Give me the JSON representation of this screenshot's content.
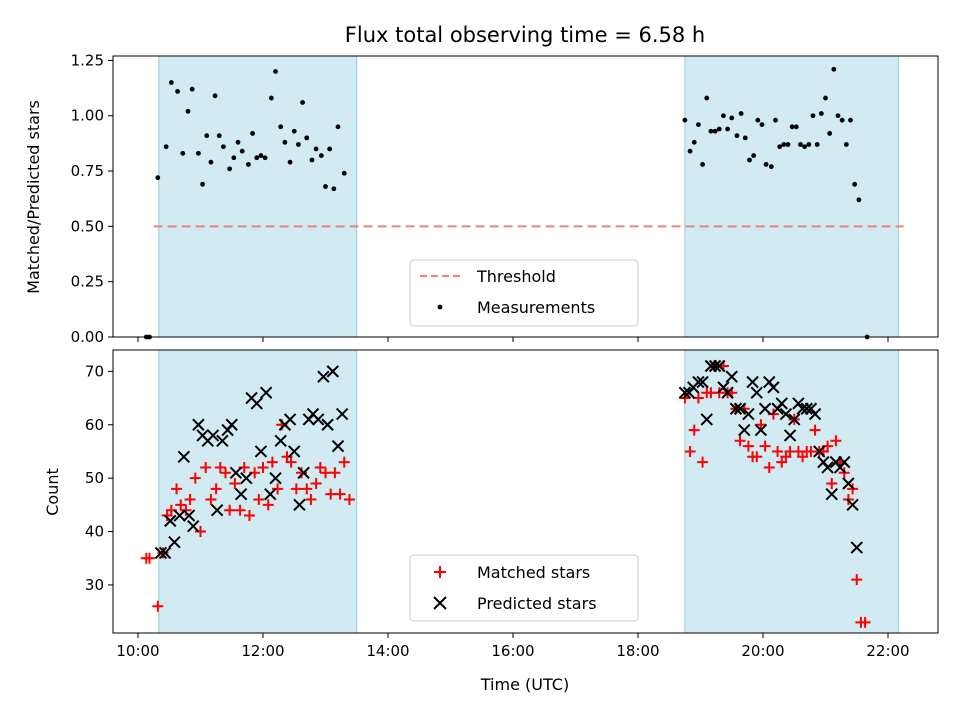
{
  "chart_data": [
    {
      "type": "scatter",
      "title": "Flux total observing time = 6.58 h",
      "xlabel": "",
      "ylabel": "Matched/Predicted stars",
      "xlim": [
        "09:36",
        "22:48"
      ],
      "ylim": [
        0,
        1.27
      ],
      "yticks": [
        "0.00",
        "0.25",
        "0.50",
        "0.75",
        "1.00",
        "1.25"
      ],
      "ytick_values": [
        0,
        0.25,
        0.5,
        0.75,
        1.0,
        1.25
      ],
      "grid": false,
      "legend": "bottom-center",
      "observing_windows": [
        [
          "10:20",
          "13:30"
        ],
        [
          "18:45",
          "22:10"
        ]
      ],
      "window_color": "#add8e6",
      "threshold": {
        "name": "Threshold",
        "value": 0.5,
        "x_range": [
          "10:15",
          "22:15"
        ],
        "color": "#f08080",
        "style": "dashed"
      },
      "series": [
        {
          "name": "Measurements",
          "color": "#000000",
          "marker": "dot",
          "points": [
            [
              "10:08",
              0.0
            ],
            [
              "10:11",
              0.0
            ],
            [
              "10:19",
              0.72
            ],
            [
              "10:27",
              0.86
            ],
            [
              "10:32",
              1.15
            ],
            [
              "10:38",
              1.11
            ],
            [
              "10:43",
              0.83
            ],
            [
              "10:48",
              1.02
            ],
            [
              "10:52",
              1.12
            ],
            [
              "10:58",
              0.83
            ],
            [
              "11:02",
              0.69
            ],
            [
              "11:06",
              0.91
            ],
            [
              "11:10",
              0.79
            ],
            [
              "11:14",
              1.09
            ],
            [
              "11:18",
              0.91
            ],
            [
              "11:22",
              0.86
            ],
            [
              "11:28",
              0.76
            ],
            [
              "11:32",
              0.81
            ],
            [
              "11:36",
              0.88
            ],
            [
              "11:40",
              0.84
            ],
            [
              "11:46",
              0.78
            ],
            [
              "11:50",
              0.92
            ],
            [
              "11:54",
              0.81
            ],
            [
              "11:58",
              0.82
            ],
            [
              "12:02",
              0.81
            ],
            [
              "12:08",
              1.08
            ],
            [
              "12:12",
              1.2
            ],
            [
              "12:17",
              0.95
            ],
            [
              "12:21",
              0.88
            ],
            [
              "12:26",
              0.79
            ],
            [
              "12:30",
              0.93
            ],
            [
              "12:34",
              0.87
            ],
            [
              "12:38",
              1.06
            ],
            [
              "12:42",
              0.9
            ],
            [
              "12:47",
              0.8
            ],
            [
              "12:51",
              0.85
            ],
            [
              "12:56",
              0.82
            ],
            [
              "13:00",
              0.68
            ],
            [
              "13:04",
              0.85
            ],
            [
              "13:08",
              0.67
            ],
            [
              "13:12",
              0.95
            ],
            [
              "13:18",
              0.74
            ],
            [
              "18:45",
              0.98
            ],
            [
              "18:50",
              0.84
            ],
            [
              "18:54",
              0.88
            ],
            [
              "18:58",
              0.96
            ],
            [
              "19:02",
              0.78
            ],
            [
              "19:06",
              1.08
            ],
            [
              "19:10",
              0.93
            ],
            [
              "19:14",
              0.93
            ],
            [
              "19:18",
              0.94
            ],
            [
              "19:22",
              1.0
            ],
            [
              "19:26",
              0.94
            ],
            [
              "19:30",
              0.99
            ],
            [
              "19:35",
              0.91
            ],
            [
              "19:39",
              1.01
            ],
            [
              "19:43",
              0.9
            ],
            [
              "19:47",
              0.8
            ],
            [
              "19:51",
              0.82
            ],
            [
              "19:55",
              0.98
            ],
            [
              "19:59",
              0.96
            ],
            [
              "20:03",
              0.78
            ],
            [
              "20:08",
              0.77
            ],
            [
              "20:12",
              0.98
            ],
            [
              "20:16",
              0.86
            ],
            [
              "20:20",
              0.87
            ],
            [
              "20:24",
              0.87
            ],
            [
              "20:28",
              0.95
            ],
            [
              "20:32",
              0.95
            ],
            [
              "20:36",
              0.87
            ],
            [
              "20:40",
              0.86
            ],
            [
              "20:44",
              0.87
            ],
            [
              "20:48",
              1.0
            ],
            [
              "20:52",
              0.87
            ],
            [
              "20:56",
              1.01
            ],
            [
              "21:00",
              1.08
            ],
            [
              "21:04",
              0.92
            ],
            [
              "21:08",
              1.21
            ],
            [
              "21:12",
              1.0
            ],
            [
              "21:16",
              0.98
            ],
            [
              "21:20",
              0.87
            ],
            [
              "21:24",
              0.98
            ],
            [
              "21:28",
              0.69
            ],
            [
              "21:32",
              0.62
            ],
            [
              "21:40",
              0.0
            ]
          ]
        }
      ]
    },
    {
      "type": "scatter",
      "title": "",
      "xlabel": "Time (UTC)",
      "ylabel": "Count",
      "xlim": [
        "09:36",
        "22:48"
      ],
      "ylim": [
        21,
        74
      ],
      "xticks": [
        "10:00",
        "12:00",
        "14:00",
        "16:00",
        "18:00",
        "20:00",
        "22:00"
      ],
      "yticks": [
        "30",
        "40",
        "50",
        "60",
        "70"
      ],
      "ytick_values": [
        30,
        40,
        50,
        60,
        70
      ],
      "grid": false,
      "legend": "bottom-center",
      "observing_windows": [
        [
          "10:20",
          "13:30"
        ],
        [
          "18:45",
          "22:10"
        ]
      ],
      "window_color": "#add8e6",
      "series": [
        {
          "name": "Matched stars",
          "color": "#ff0000",
          "marker": "plus",
          "points": [
            [
              "10:08",
              35
            ],
            [
              "10:11",
              35
            ],
            [
              "10:19",
              26
            ],
            [
              "10:24",
              36
            ],
            [
              "10:28",
              43
            ],
            [
              "10:32",
              44
            ],
            [
              "10:37",
              48
            ],
            [
              "10:41",
              45
            ],
            [
              "10:46",
              44
            ],
            [
              "10:50",
              46
            ],
            [
              "10:55",
              50
            ],
            [
              "11:00",
              40
            ],
            [
              "11:05",
              52
            ],
            [
              "11:10",
              46
            ],
            [
              "11:15",
              48
            ],
            [
              "11:19",
              52
            ],
            [
              "11:24",
              51
            ],
            [
              "11:28",
              44
            ],
            [
              "11:33",
              49
            ],
            [
              "11:38",
              44
            ],
            [
              "11:42",
              52
            ],
            [
              "11:47",
              43
            ],
            [
              "11:52",
              51
            ],
            [
              "11:56",
              46
            ],
            [
              "12:00",
              52
            ],
            [
              "12:05",
              45
            ],
            [
              "12:09",
              53
            ],
            [
              "12:14",
              48
            ],
            [
              "12:18",
              60
            ],
            [
              "12:23",
              54
            ],
            [
              "12:27",
              53
            ],
            [
              "12:32",
              48
            ],
            [
              "12:37",
              51
            ],
            [
              "12:42",
              48
            ],
            [
              "12:46",
              46
            ],
            [
              "12:51",
              49
            ],
            [
              "12:55",
              52
            ],
            [
              "13:00",
              51
            ],
            [
              "13:05",
              47
            ],
            [
              "13:09",
              51
            ],
            [
              "13:14",
              47
            ],
            [
              "13:18",
              53
            ],
            [
              "13:23",
              46
            ],
            [
              "18:45",
              65
            ],
            [
              "18:50",
              55
            ],
            [
              "18:54",
              59
            ],
            [
              "18:58",
              65
            ],
            [
              "19:02",
              53
            ],
            [
              "19:06",
              66
            ],
            [
              "19:10",
              66
            ],
            [
              "19:14",
              71
            ],
            [
              "19:18",
              66
            ],
            [
              "19:22",
              71
            ],
            [
              "19:26",
              66
            ],
            [
              "19:30",
              66
            ],
            [
              "19:34",
              63
            ],
            [
              "19:38",
              57
            ],
            [
              "19:42",
              63
            ],
            [
              "19:46",
              56
            ],
            [
              "19:50",
              54
            ],
            [
              "19:54",
              54
            ],
            [
              "19:58",
              60
            ],
            [
              "20:02",
              56
            ],
            [
              "20:06",
              52
            ],
            [
              "20:10",
              62
            ],
            [
              "20:14",
              55
            ],
            [
              "20:18",
              53
            ],
            [
              "20:22",
              54
            ],
            [
              "20:26",
              55
            ],
            [
              "20:30",
              61
            ],
            [
              "20:34",
              55
            ],
            [
              "20:38",
              54
            ],
            [
              "20:42",
              55
            ],
            [
              "20:46",
              55
            ],
            [
              "20:50",
              59
            ],
            [
              "20:54",
              55
            ],
            [
              "20:58",
              55
            ],
            [
              "21:02",
              56
            ],
            [
              "21:06",
              49
            ],
            [
              "21:10",
              57
            ],
            [
              "21:14",
              53
            ],
            [
              "21:18",
              51
            ],
            [
              "21:22",
              46
            ],
            [
              "21:26",
              48
            ],
            [
              "21:30",
              31
            ],
            [
              "21:34",
              23
            ],
            [
              "21:38",
              23
            ]
          ]
        },
        {
          "name": "Predicted stars",
          "color": "#000000",
          "marker": "x",
          "points": [
            [
              "10:22",
              36
            ],
            [
              "10:26",
              36
            ],
            [
              "10:31",
              42
            ],
            [
              "10:35",
              38
            ],
            [
              "10:40",
              43
            ],
            [
              "10:44",
              54
            ],
            [
              "10:49",
              43
            ],
            [
              "10:53",
              41
            ],
            [
              "10:58",
              60
            ],
            [
              "11:02",
              58
            ],
            [
              "11:07",
              57
            ],
            [
              "11:12",
              58
            ],
            [
              "11:16",
              44
            ],
            [
              "11:21",
              57
            ],
            [
              "11:26",
              59
            ],
            [
              "11:30",
              60
            ],
            [
              "11:34",
              51
            ],
            [
              "11:39",
              47
            ],
            [
              "11:44",
              50
            ],
            [
              "11:49",
              65
            ],
            [
              "11:54",
              64
            ],
            [
              "11:58",
              55
            ],
            [
              "12:03",
              66
            ],
            [
              "12:07",
              47
            ],
            [
              "12:12",
              50
            ],
            [
              "12:17",
              57
            ],
            [
              "12:21",
              60
            ],
            [
              "12:26",
              61
            ],
            [
              "12:30",
              55
            ],
            [
              "12:35",
              45
            ],
            [
              "12:39",
              51
            ],
            [
              "12:44",
              61
            ],
            [
              "12:48",
              62
            ],
            [
              "12:53",
              61
            ],
            [
              "12:58",
              69
            ],
            [
              "13:02",
              60
            ],
            [
              "13:07",
              70
            ],
            [
              "13:12",
              56
            ],
            [
              "13:16",
              62
            ],
            [
              "18:45",
              66
            ],
            [
              "18:49",
              66
            ],
            [
              "18:53",
              67
            ],
            [
              "18:58",
              68
            ],
            [
              "19:02",
              68
            ],
            [
              "19:06",
              61
            ],
            [
              "19:10",
              71
            ],
            [
              "19:14",
              71
            ],
            [
              "19:18",
              71
            ],
            [
              "19:22",
              67
            ],
            [
              "19:26",
              66
            ],
            [
              "19:30",
              69
            ],
            [
              "19:34",
              63
            ],
            [
              "19:38",
              63
            ],
            [
              "19:42",
              59
            ],
            [
              "19:46",
              62
            ],
            [
              "19:50",
              68
            ],
            [
              "19:54",
              66
            ],
            [
              "19:58",
              59
            ],
            [
              "20:02",
              63
            ],
            [
              "20:06",
              68
            ],
            [
              "20:10",
              67
            ],
            [
              "20:14",
              63
            ],
            [
              "20:18",
              64
            ],
            [
              "20:22",
              62
            ],
            [
              "20:26",
              58
            ],
            [
              "20:30",
              61
            ],
            [
              "20:34",
              64
            ],
            [
              "20:38",
              63
            ],
            [
              "20:42",
              63
            ],
            [
              "20:46",
              63
            ],
            [
              "20:50",
              62
            ],
            [
              "20:54",
              55
            ],
            [
              "20:58",
              53
            ],
            [
              "21:02",
              52
            ],
            [
              "21:06",
              47
            ],
            [
              "21:10",
              53
            ],
            [
              "21:14",
              52
            ],
            [
              "21:18",
              53
            ],
            [
              "21:22",
              49
            ],
            [
              "21:26",
              45
            ],
            [
              "21:30",
              37
            ]
          ]
        }
      ]
    }
  ]
}
